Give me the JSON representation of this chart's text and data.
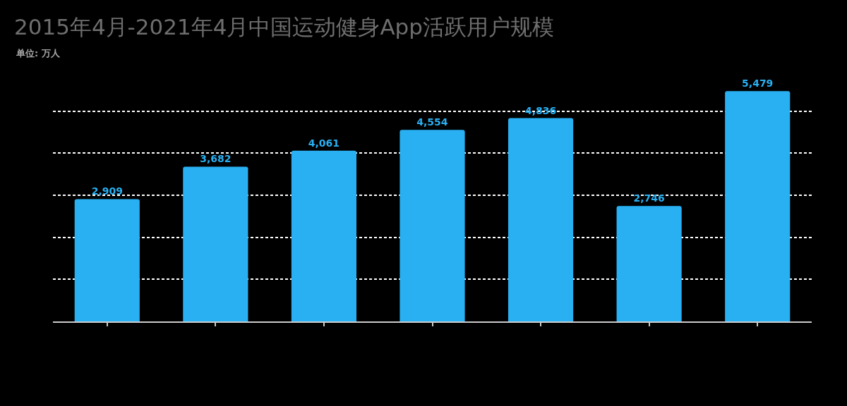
{
  "chart_data": {
    "type": "bar",
    "title": "2015年4月-2021年4月中国运动健身App活跃用户规模",
    "subtitle": "单位: 万人",
    "categories": [
      null,
      null,
      null,
      null,
      null,
      null,
      null
    ],
    "values": [
      2909,
      3682,
      4061,
      4554,
      4836,
      2746,
      5479
    ],
    "value_labels": [
      "2,909",
      "3,682",
      "4,061",
      "4,554",
      "4,836",
      "2,746",
      "5,479"
    ],
    "color": "#29b0f2",
    "grid": "y"
  }
}
